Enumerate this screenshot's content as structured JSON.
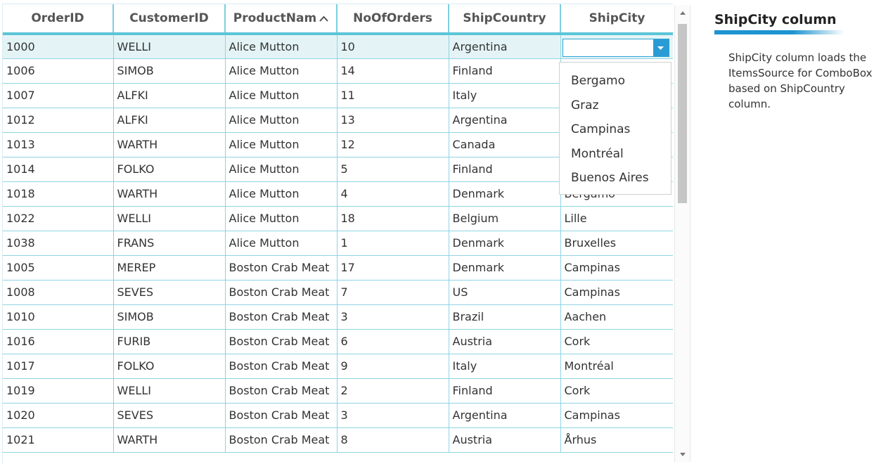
{
  "grid": {
    "columns": [
      {
        "key": "order_id",
        "label": "OrderID"
      },
      {
        "key": "customer_id",
        "label": "CustomerID"
      },
      {
        "key": "product_name",
        "label": "ProductNam",
        "sort": "ascending"
      },
      {
        "key": "no_of_orders",
        "label": "NoOfOrders"
      },
      {
        "key": "ship_country",
        "label": "ShipCountry"
      },
      {
        "key": "ship_city",
        "label": "ShipCity"
      }
    ],
    "sort_icon": "chevron-up-icon",
    "rows": [
      {
        "order_id": "1000",
        "customer_id": "WELLI",
        "product_name": "Alice Mutton",
        "no_of_orders": "10",
        "ship_country": "Argentina",
        "ship_city": "",
        "selected": true,
        "editing": true
      },
      {
        "order_id": "1006",
        "customer_id": "SIMOB",
        "product_name": "Alice Mutton",
        "no_of_orders": "14",
        "ship_country": "Finland",
        "ship_city": ""
      },
      {
        "order_id": "1007",
        "customer_id": "ALFKI",
        "product_name": "Alice Mutton",
        "no_of_orders": "11",
        "ship_country": "Italy",
        "ship_city": ""
      },
      {
        "order_id": "1012",
        "customer_id": "ALFKI",
        "product_name": "Alice Mutton",
        "no_of_orders": "13",
        "ship_country": "Argentina",
        "ship_city": ""
      },
      {
        "order_id": "1013",
        "customer_id": "WARTH",
        "product_name": "Alice Mutton",
        "no_of_orders": "12",
        "ship_country": "Canada",
        "ship_city": ""
      },
      {
        "order_id": "1014",
        "customer_id": "FOLKO",
        "product_name": "Alice Mutton",
        "no_of_orders": "5",
        "ship_country": "Finland",
        "ship_city": ""
      },
      {
        "order_id": "1018",
        "customer_id": "WARTH",
        "product_name": "Alice Mutton",
        "no_of_orders": "4",
        "ship_country": "Denmark",
        "ship_city": "Bergamo"
      },
      {
        "order_id": "1022",
        "customer_id": "WELLI",
        "product_name": "Alice Mutton",
        "no_of_orders": "18",
        "ship_country": "Belgium",
        "ship_city": "Lille"
      },
      {
        "order_id": "1038",
        "customer_id": "FRANS",
        "product_name": "Alice Mutton",
        "no_of_orders": "1",
        "ship_country": "Denmark",
        "ship_city": "Bruxelles"
      },
      {
        "order_id": "1005",
        "customer_id": "MEREP",
        "product_name": "Boston Crab Meat",
        "no_of_orders": "17",
        "ship_country": "Denmark",
        "ship_city": "Campinas"
      },
      {
        "order_id": "1008",
        "customer_id": "SEVES",
        "product_name": "Boston Crab Meat",
        "no_of_orders": "7",
        "ship_country": "US",
        "ship_city": "Campinas"
      },
      {
        "order_id": "1010",
        "customer_id": "SIMOB",
        "product_name": "Boston Crab Meat",
        "no_of_orders": "3",
        "ship_country": "Brazil",
        "ship_city": "Aachen"
      },
      {
        "order_id": "1016",
        "customer_id": "FURIB",
        "product_name": "Boston Crab Meat",
        "no_of_orders": "6",
        "ship_country": "Austria",
        "ship_city": "Cork"
      },
      {
        "order_id": "1017",
        "customer_id": "FOLKO",
        "product_name": "Boston Crab Meat",
        "no_of_orders": "9",
        "ship_country": "Italy",
        "ship_city": "Montréal"
      },
      {
        "order_id": "1019",
        "customer_id": "WELLI",
        "product_name": "Boston Crab Meat",
        "no_of_orders": "2",
        "ship_country": "Finland",
        "ship_city": "Cork"
      },
      {
        "order_id": "1020",
        "customer_id": "SEVES",
        "product_name": "Boston Crab Meat",
        "no_of_orders": "3",
        "ship_country": "Argentina",
        "ship_city": "Campinas"
      },
      {
        "order_id": "1021",
        "customer_id": "WARTH",
        "product_name": "Boston Crab Meat",
        "no_of_orders": "8",
        "ship_country": "Austria",
        "ship_city": "Århus"
      }
    ]
  },
  "combo": {
    "value": "",
    "button_icon": "caret-down-icon",
    "options": [
      "Bergamo",
      "Graz",
      "Campinas",
      "Montréal",
      "Buenos Aires"
    ]
  },
  "scrollbar": {
    "up_icon": "scroll-up-arrow-icon",
    "down_icon": "scroll-down-arrow-icon"
  },
  "side_panel": {
    "title": "ShipCity column",
    "description": "ShipCity column loads the ItemsSource for ComboBox based on ShipCountry column."
  },
  "colors": {
    "header_border": "#5cc5d8",
    "grid_line": "#8fd3e3",
    "selected_row": "#e4f4f6",
    "accent": "#1d94cf",
    "combo_button": "#2b9bd6"
  }
}
